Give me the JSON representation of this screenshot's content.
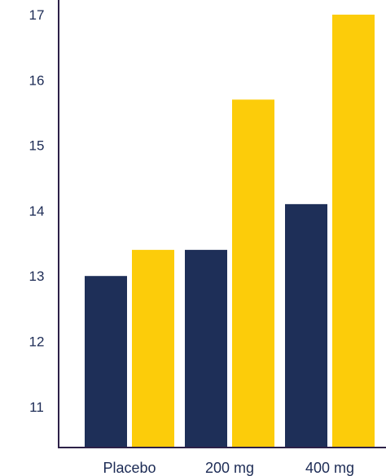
{
  "chart_data": {
    "type": "bar",
    "categories": [
      "Placebo",
      "200 mg",
      "400 mg"
    ],
    "series": [
      {
        "values": [
          13.0,
          13.4,
          14.1
        ],
        "color": "#1e2f58"
      },
      {
        "values": [
          13.4,
          15.7,
          17.0
        ],
        "color": "#fccc0a"
      }
    ],
    "yticks": [
      "11",
      "12",
      "13",
      "14",
      "15",
      "16",
      "17"
    ],
    "ylim": [
      10.4,
      17.15
    ],
    "grid": false,
    "axis_color": "#2d2148"
  }
}
